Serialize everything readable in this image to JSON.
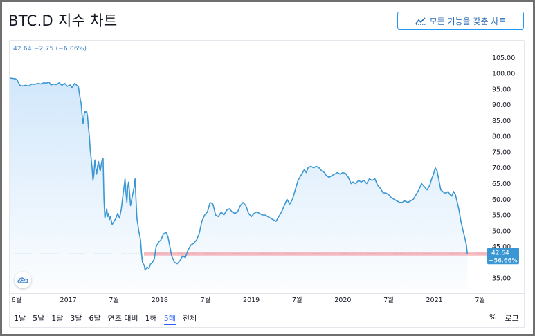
{
  "page": {
    "title": "BTC.D 지수 차트",
    "full_button_label": "모든 기능을 갖춘 차트",
    "legend_text": "42.64  −2.75 (−6.06%)",
    "timeframes": [
      "1날",
      "5날",
      "1달",
      "3달",
      "6달",
      "연초 대비",
      "1해",
      "5해",
      "전체"
    ],
    "active_timeframe_index": 7,
    "percent_label": "%",
    "log_label": "로그",
    "price_label_value": "42.64",
    "price_label_change": "−56.66%",
    "icons": {
      "full_button": "chart-line-icon",
      "logo": "tradingview-cloud-icon"
    }
  },
  "chart_data": {
    "type": "area",
    "y_ticks": [
      "105.00",
      "100.00",
      "95.00",
      "90.00",
      "85.00",
      "80.00",
      "75.00",
      "70.00",
      "65.00",
      "60.00",
      "55.00",
      "50.00",
      "45.00",
      "35.00"
    ],
    "x_ticks": [
      "6월",
      "2017",
      "7월",
      "2018",
      "7월",
      "2019",
      "7월",
      "2020",
      "7월",
      "2021",
      "7월"
    ],
    "ylim": [
      31.5,
      107.5
    ],
    "xlim": [
      2016.36,
      2021.57
    ],
    "current_value": 42.64,
    "baseline": 42.64,
    "colors": {
      "line": "#3b97d3",
      "fill_top": "#cfe6fb",
      "baseline": "#f2898f"
    },
    "points": [
      [
        2016.36,
        98.5
      ],
      [
        2016.42,
        98.3
      ],
      [
        2016.44,
        98.0
      ],
      [
        2016.47,
        96.2
      ],
      [
        2016.5,
        96.0
      ],
      [
        2016.53,
        96.2
      ],
      [
        2016.57,
        96.0
      ],
      [
        2016.6,
        96.6
      ],
      [
        2016.63,
        96.5
      ],
      [
        2016.67,
        96.8
      ],
      [
        2016.7,
        96.6
      ],
      [
        2016.73,
        97.0
      ],
      [
        2016.76,
        96.9
      ],
      [
        2016.79,
        97.2
      ],
      [
        2016.81,
        96.3
      ],
      [
        2016.84,
        96.6
      ],
      [
        2016.87,
        96.4
      ],
      [
        2016.9,
        97.0
      ],
      [
        2016.93,
        96.2
      ],
      [
        2016.96,
        96.8
      ],
      [
        2016.99,
        95.9
      ],
      [
        2017.02,
        96.3
      ],
      [
        2017.04,
        95.5
      ],
      [
        2017.07,
        96.8
      ],
      [
        2017.09,
        96.3
      ],
      [
        2017.11,
        95.8
      ],
      [
        2017.13,
        92.0
      ],
      [
        2017.14,
        90.5
      ],
      [
        2017.15,
        87.0
      ],
      [
        2017.16,
        84.0
      ],
      [
        2017.17,
        86.0
      ],
      [
        2017.18,
        88.0
      ],
      [
        2017.19,
        87.5
      ],
      [
        2017.2,
        88.0
      ],
      [
        2017.21,
        86.5
      ],
      [
        2017.22,
        83.0
      ],
      [
        2017.23,
        80.0
      ],
      [
        2017.24,
        75.5
      ],
      [
        2017.25,
        73.0
      ],
      [
        2017.26,
        70.0
      ],
      [
        2017.27,
        66.0
      ],
      [
        2017.28,
        68.0
      ],
      [
        2017.29,
        72.5
      ],
      [
        2017.3,
        70.0
      ],
      [
        2017.31,
        68.0
      ],
      [
        2017.32,
        70.5
      ],
      [
        2017.33,
        72.0
      ],
      [
        2017.34,
        70.0
      ],
      [
        2017.35,
        69.0
      ],
      [
        2017.36,
        71.0
      ],
      [
        2017.37,
        72.5
      ],
      [
        2017.38,
        73.0
      ],
      [
        2017.39,
        60.0
      ],
      [
        2017.4,
        54.0
      ],
      [
        2017.41,
        55.5
      ],
      [
        2017.42,
        57.0
      ],
      [
        2017.43,
        54.5
      ],
      [
        2017.44,
        55.5
      ],
      [
        2017.45,
        53.5
      ],
      [
        2017.46,
        54.5
      ],
      [
        2017.48,
        52.0
      ],
      [
        2017.5,
        53.0
      ],
      [
        2017.52,
        54.0
      ],
      [
        2017.54,
        55.5
      ],
      [
        2017.56,
        54.0
      ],
      [
        2017.58,
        57.0
      ],
      [
        2017.6,
        62.0
      ],
      [
        2017.61,
        64.0
      ],
      [
        2017.62,
        66.5
      ],
      [
        2017.63,
        62.0
      ],
      [
        2017.64,
        59.0
      ],
      [
        2017.65,
        64.0
      ],
      [
        2017.66,
        65.5
      ],
      [
        2017.67,
        62.0
      ],
      [
        2017.68,
        58.0
      ],
      [
        2017.7,
        61.0
      ],
      [
        2017.72,
        64.0
      ],
      [
        2017.73,
        66.5
      ],
      [
        2017.74,
        60.0
      ],
      [
        2017.75,
        54.0
      ],
      [
        2017.77,
        50.0
      ],
      [
        2017.79,
        47.0
      ],
      [
        2017.8,
        43.0
      ],
      [
        2017.81,
        40.0
      ],
      [
        2017.83,
        39.0
      ],
      [
        2017.84,
        37.5
      ],
      [
        2017.86,
        38.5
      ],
      [
        2017.88,
        38.0
      ],
      [
        2017.9,
        39.5
      ],
      [
        2017.92,
        40.0
      ],
      [
        2017.94,
        41.0
      ],
      [
        2017.96,
        45.0
      ],
      [
        2017.99,
        46.5
      ],
      [
        2018.01,
        47.0
      ],
      [
        2018.04,
        49.0
      ],
      [
        2018.07,
        49.5
      ],
      [
        2018.09,
        48.0
      ],
      [
        2018.11,
        45.0
      ],
      [
        2018.13,
        42.0
      ],
      [
        2018.16,
        40.0
      ],
      [
        2018.19,
        39.5
      ],
      [
        2018.22,
        40.5
      ],
      [
        2018.25,
        42.0
      ],
      [
        2018.28,
        41.5
      ],
      [
        2018.31,
        44.0
      ],
      [
        2018.34,
        45.5
      ],
      [
        2018.37,
        46.0
      ],
      [
        2018.4,
        47.0
      ],
      [
        2018.43,
        49.0
      ],
      [
        2018.46,
        53.0
      ],
      [
        2018.49,
        55.0
      ],
      [
        2018.52,
        56.0
      ],
      [
        2018.55,
        59.0
      ],
      [
        2018.58,
        58.5
      ],
      [
        2018.61,
        55.0
      ],
      [
        2018.64,
        54.5
      ],
      [
        2018.67,
        56.0
      ],
      [
        2018.7,
        55.0
      ],
      [
        2018.73,
        56.5
      ],
      [
        2018.76,
        57.0
      ],
      [
        2018.79,
        56.0
      ],
      [
        2018.82,
        55.5
      ],
      [
        2018.85,
        56.0
      ],
      [
        2018.88,
        58.0
      ],
      [
        2018.91,
        59.0
      ],
      [
        2018.94,
        58.0
      ],
      [
        2018.97,
        55.5
      ],
      [
        2019.0,
        54.5
      ],
      [
        2019.03,
        55.5
      ],
      [
        2019.06,
        56.0
      ],
      [
        2019.09,
        55.5
      ],
      [
        2019.12,
        55.0
      ],
      [
        2019.15,
        55.0
      ],
      [
        2019.18,
        54.5
      ],
      [
        2019.21,
        54.0
      ],
      [
        2019.24,
        53.5
      ],
      [
        2019.27,
        53.0
      ],
      [
        2019.3,
        54.5
      ],
      [
        2019.33,
        56.0
      ],
      [
        2019.36,
        58.0
      ],
      [
        2019.39,
        60.0
      ],
      [
        2019.42,
        58.5
      ],
      [
        2019.45,
        60.0
      ],
      [
        2019.48,
        63.0
      ],
      [
        2019.51,
        66.0
      ],
      [
        2019.54,
        67.5
      ],
      [
        2019.56,
        68.5
      ],
      [
        2019.58,
        69.5
      ],
      [
        2019.6,
        68.5
      ],
      [
        2019.62,
        70.0
      ],
      [
        2019.65,
        70.5
      ],
      [
        2019.68,
        70.0
      ],
      [
        2019.71,
        70.5
      ],
      [
        2019.74,
        70.0
      ],
      [
        2019.77,
        69.0
      ],
      [
        2019.8,
        68.5
      ],
      [
        2019.82,
        67.5
      ],
      [
        2019.85,
        67.0
      ],
      [
        2019.88,
        67.5
      ],
      [
        2019.91,
        68.0
      ],
      [
        2019.94,
        68.5
      ],
      [
        2019.97,
        68.0
      ],
      [
        2020.0,
        68.5
      ],
      [
        2020.03,
        68.2
      ],
      [
        2020.06,
        67.0
      ],
      [
        2020.09,
        65.0
      ],
      [
        2020.11,
        65.5
      ],
      [
        2020.14,
        65.0
      ],
      [
        2020.17,
        66.0
      ],
      [
        2020.2,
        65.5
      ],
      [
        2020.23,
        66.0
      ],
      [
        2020.26,
        65.0
      ],
      [
        2020.29,
        66.5
      ],
      [
        2020.32,
        66.0
      ],
      [
        2020.35,
        66.5
      ],
      [
        2020.38,
        64.5
      ],
      [
        2020.41,
        63.5
      ],
      [
        2020.44,
        62.0
      ],
      [
        2020.47,
        62.0
      ],
      [
        2020.5,
        61.5
      ],
      [
        2020.53,
        60.5
      ],
      [
        2020.56,
        60.0
      ],
      [
        2020.59,
        59.5
      ],
      [
        2020.62,
        59.0
      ],
      [
        2020.65,
        59.0
      ],
      [
        2020.68,
        59.5
      ],
      [
        2020.71,
        59.0
      ],
      [
        2020.74,
        59.5
      ],
      [
        2020.77,
        60.0
      ],
      [
        2020.8,
        61.5
      ],
      [
        2020.83,
        63.0
      ],
      [
        2020.86,
        65.0
      ],
      [
        2020.89,
        64.0
      ],
      [
        2020.92,
        63.0
      ],
      [
        2020.95,
        64.5
      ],
      [
        2020.97,
        66.5
      ],
      [
        2020.99,
        68.0
      ],
      [
        2021.01,
        70.0
      ],
      [
        2021.03,
        69.0
      ],
      [
        2021.05,
        66.0
      ],
      [
        2021.07,
        63.0
      ],
      [
        2021.09,
        62.5
      ],
      [
        2021.11,
        62.0
      ],
      [
        2021.13,
        62.0
      ],
      [
        2021.15,
        62.5
      ],
      [
        2021.17,
        61.5
      ],
      [
        2021.19,
        61.0
      ],
      [
        2021.21,
        62.5
      ],
      [
        2021.23,
        61.5
      ],
      [
        2021.25,
        59.0
      ],
      [
        2021.27,
        56.5
      ],
      [
        2021.29,
        53.0
      ],
      [
        2021.31,
        50.5
      ],
      [
        2021.33,
        48.0
      ],
      [
        2021.35,
        45.5
      ],
      [
        2021.36,
        42.64
      ]
    ]
  }
}
